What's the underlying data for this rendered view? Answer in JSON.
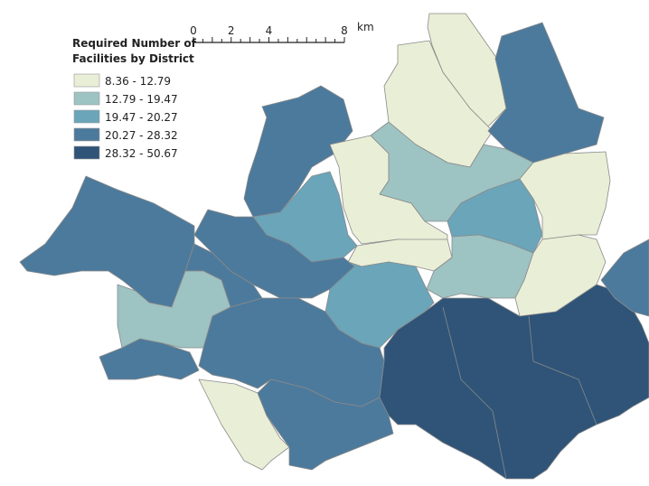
{
  "legend": {
    "title_lines": [
      "Required Number of",
      "Facilities by District"
    ],
    "classes": [
      {
        "label": "8.36  - 12.79",
        "color": "#e9eed6"
      },
      {
        "label": "12.79 - 19.47",
        "color": "#9dc3c2"
      },
      {
        "label": "19.47 - 20.27",
        "color": "#6aa5ba"
      },
      {
        "label": "20.27 - 28.32",
        "color": "#4c7a9c"
      },
      {
        "label": "28.32 - 50.67",
        "color": "#2f5478"
      }
    ]
  },
  "scale_bar": {
    "ticks": [
      0,
      2,
      4,
      8
    ],
    "unit": "km"
  }
}
